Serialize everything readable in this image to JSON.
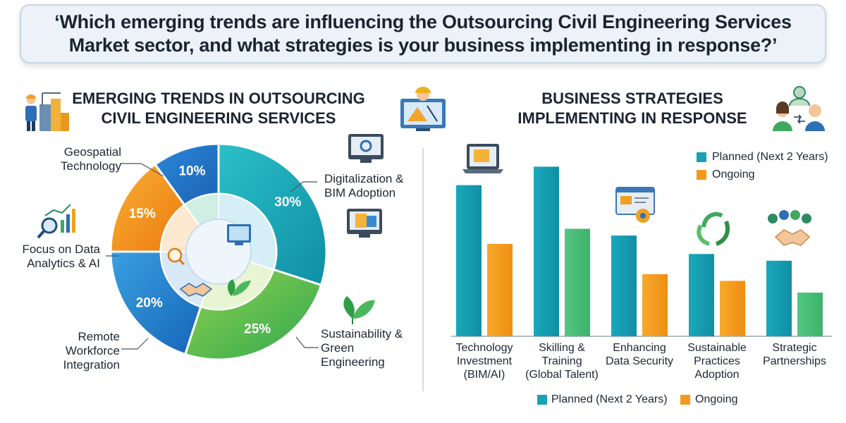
{
  "header": {
    "question": "‘Which emerging trends are influencing the Outsourcing Civil Engineering Services Market sector, and what strategies is your business implementing in response?’"
  },
  "left_section": {
    "title_line1": "EMERGING TRENDS IN OUTSOURCING",
    "title_line2": "CIVIL ENGINEERING SERVICES"
  },
  "right_section": {
    "title_line1": "BUSINESS STRATEGIES",
    "title_line2": "IMPLEMENTING IN RESPONSE"
  },
  "pie_labels": {
    "geospatial": [
      "Geospatial",
      "Technology"
    ],
    "digitalization": [
      "Digitalization &",
      "BIM Adoption"
    ],
    "data_analytics": [
      "Focus on Data",
      "Analytics & AI"
    ],
    "remote": [
      "Remote",
      "Workforce",
      "Integration"
    ],
    "sustainability": [
      "Sustainability &",
      "Green",
      "Engineering"
    ]
  },
  "bar_category_labels": [
    [
      "Technology",
      "Investment",
      "(BIM/AI)"
    ],
    [
      "Skilling &",
      "Training",
      "(Global Talent)"
    ],
    [
      "Enhancing",
      "Data Security"
    ],
    [
      "Sustainable",
      "Practices",
      "Adoption"
    ],
    [
      "Strategic",
      "Partnerships"
    ]
  ],
  "legend_top": {
    "planned": "Planned (Next 2 Years)",
    "ongoing": "Ongoing"
  },
  "legend_bottom": {
    "planned": "Planned (Next 2 Years)",
    "ongoing": "Ongoing"
  },
  "colors": {
    "teal": "#17a3b3",
    "green": "#3fb55a",
    "orange": "#f29a1a",
    "blue": "#2478c8",
    "dark_teal": "#17917f",
    "bar_green": "#4cc07a",
    "bar_orange": "#f39a1c"
  },
  "chart_data": [
    {
      "type": "pie",
      "categories": [
        "Digitalization & BIM Adoption",
        "Sustainability & Green Engineering",
        "Remote Workforce Integration",
        "Focus on Data Analytics & AI",
        "Geospatial Technology"
      ],
      "values": [
        30,
        25,
        20,
        15,
        10
      ],
      "value_labels": [
        "30%",
        "25%",
        "20%",
        "15%",
        "10%"
      ],
      "unit": "%",
      "note_visual": "Geospatial wedge is drawn as 15% in the image while labeled 10%; the slices are drawn from the labels"
    },
    {
      "type": "bar",
      "categories": [
        "Technology Investment (BIM/AI)",
        "Skilling & Training (Global Talent)",
        "Enhancing Data Security",
        "Sustainable Practices Adoption",
        "Strategic Partnerships"
      ],
      "series": [
        {
          "name": "Planned (Next 2 Years)",
          "values": [
            90,
            101,
            60,
            49,
            45
          ]
        },
        {
          "name": "Ongoing",
          "values": [
            55,
            64,
            37,
            33,
            26
          ]
        }
      ],
      "ylim": [
        0,
        110
      ],
      "ylabel": "",
      "xlabel": "",
      "grid": false,
      "legend": "top-right"
    }
  ]
}
